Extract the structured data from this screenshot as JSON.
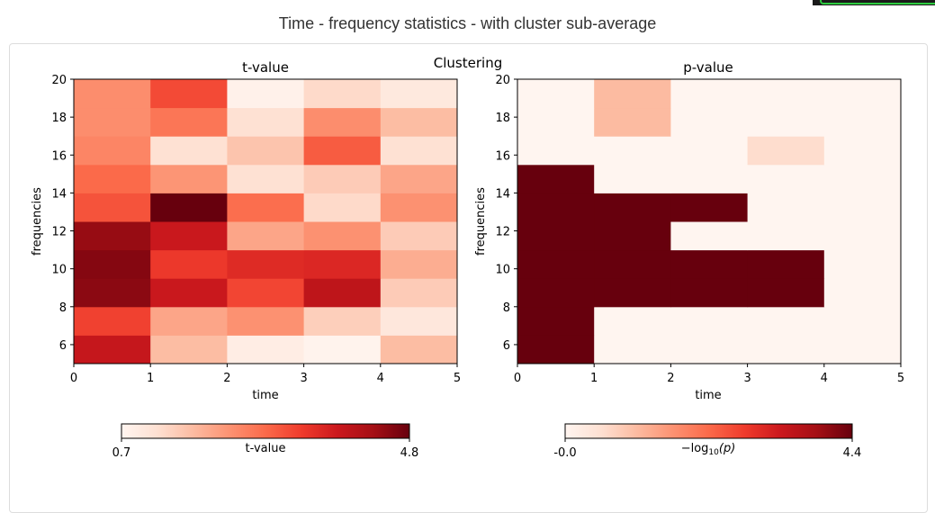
{
  "page": {
    "title": "Time - frequency statistics - with cluster sub-average"
  },
  "figure": {
    "suptitle": "Clustering"
  },
  "chart_data": [
    {
      "type": "heatmap",
      "title": "t-value",
      "xlabel": "time",
      "ylabel": "frequencies",
      "xlim": [
        0,
        5
      ],
      "ylim": [
        5,
        20
      ],
      "xticks": [
        "0",
        "1",
        "2",
        "3",
        "4",
        "5"
      ],
      "yticks": [
        "6",
        "8",
        "10",
        "12",
        "14",
        "16",
        "18",
        "20"
      ],
      "x_edges": [
        0,
        1,
        2,
        3,
        4,
        5
      ],
      "y_edges": [
        5,
        6.5,
        8,
        9.5,
        11,
        12.5,
        14,
        15.5,
        17,
        18.5,
        20
      ],
      "colormap": "Reds",
      "vmin": 0.7,
      "vmax": 4.8,
      "values_rows_bottom_to_top": [
        [
          3.85,
          1.7,
          0.9,
          0.75,
          1.7
        ],
        [
          3.2,
          2.0,
          2.25,
          1.45,
          1.05
        ],
        [
          4.5,
          3.8,
          3.15,
          3.95,
          1.5
        ],
        [
          4.55,
          3.3,
          3.5,
          3.55,
          1.9
        ],
        [
          4.4,
          3.8,
          2.0,
          2.25,
          1.5
        ],
        [
          3.0,
          4.8,
          2.7,
          1.3,
          2.25
        ],
        [
          2.75,
          2.2,
          1.2,
          1.5,
          2.0
        ],
        [
          2.4,
          1.2,
          1.6,
          2.9,
          1.2
        ],
        [
          2.3,
          2.6,
          1.2,
          2.3,
          1.7
        ],
        [
          2.3,
          3.1,
          0.8,
          1.3,
          1.0
        ]
      ],
      "colorbar": {
        "label": "t-value",
        "min_label": "0.7",
        "max_label": "4.8",
        "orientation": "horizontal",
        "placement": "bottom"
      }
    },
    {
      "type": "heatmap",
      "title": "p-value",
      "xlabel": "time",
      "ylabel": "frequencies",
      "xlim": [
        0,
        5
      ],
      "ylim": [
        5,
        20
      ],
      "xticks": [
        "0",
        "1",
        "2",
        "3",
        "4",
        "5"
      ],
      "yticks": [
        "6",
        "8",
        "10",
        "12",
        "14",
        "16",
        "18",
        "20"
      ],
      "x_edges": [
        0,
        1,
        2,
        3,
        4,
        5
      ],
      "y_edges": [
        5,
        6.5,
        8,
        9.5,
        11,
        12.5,
        14,
        15.5,
        17,
        18.5,
        20
      ],
      "colormap": "Reds",
      "vmin": 0.0,
      "vmax": 4.4,
      "values_rows_bottom_to_top": [
        [
          4.4,
          0.0,
          0.0,
          0.0,
          0.0
        ],
        [
          4.4,
          0.0,
          0.0,
          0.0,
          0.0
        ],
        [
          4.4,
          4.4,
          4.4,
          4.4,
          0.0
        ],
        [
          4.4,
          4.4,
          4.4,
          4.4,
          0.0
        ],
        [
          4.4,
          4.4,
          0.0,
          0.0,
          0.0
        ],
        [
          4.4,
          4.4,
          4.4,
          0.0,
          0.0
        ],
        [
          4.4,
          0.0,
          0.0,
          0.0,
          0.0
        ],
        [
          0.0,
          0.0,
          0.0,
          0.6,
          0.0
        ],
        [
          0.0,
          1.1,
          0.0,
          0.0,
          0.0
        ],
        [
          0.0,
          1.1,
          0.0,
          0.0,
          0.0
        ]
      ],
      "colorbar": {
        "label": "−log10(p)",
        "label_base": "−log",
        "label_sub": "10",
        "label_arg": "(p)",
        "min_label": "-0.0",
        "max_label": "4.4",
        "orientation": "horizontal",
        "placement": "bottom"
      }
    }
  ]
}
